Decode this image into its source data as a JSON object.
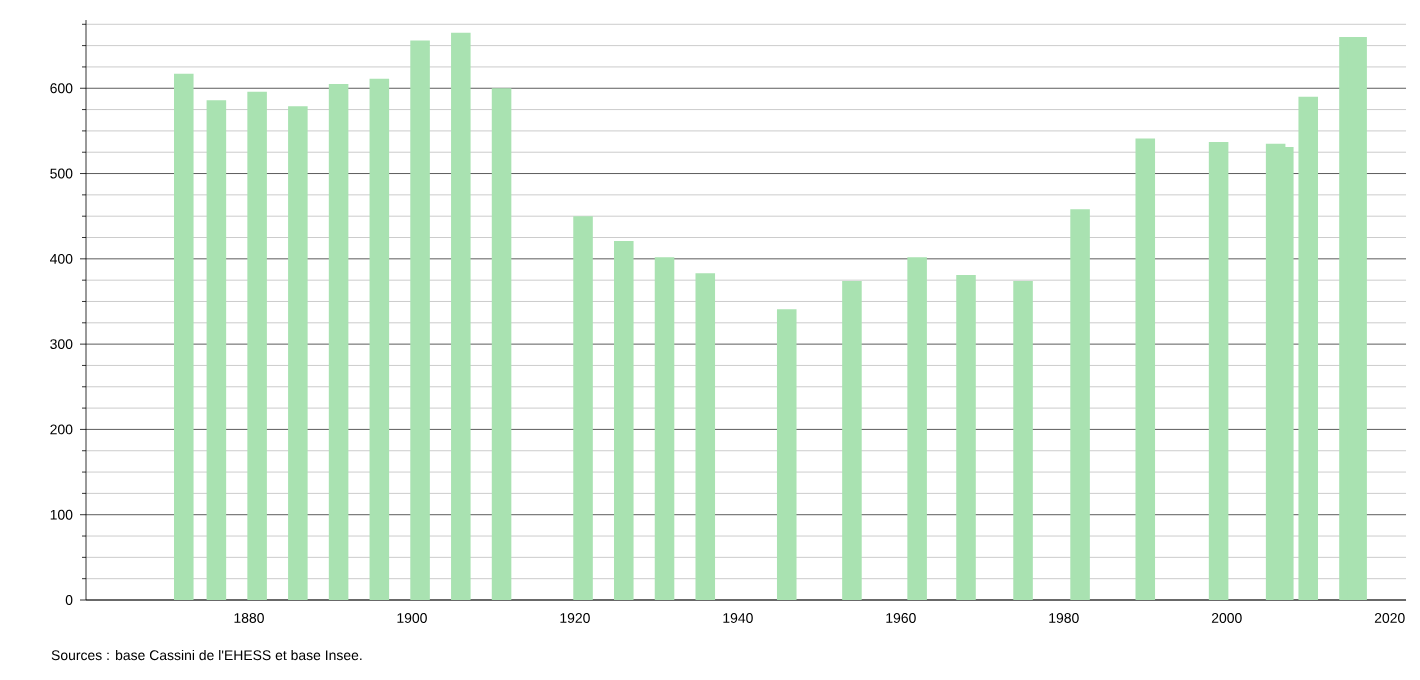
{
  "chart_data": {
    "type": "bar",
    "x": [
      1872,
      1876,
      1881,
      1886,
      1891,
      1896,
      1901,
      1906,
      1911,
      1921,
      1926,
      1931,
      1936,
      1946,
      1954,
      1962,
      1968,
      1975,
      1982,
      1990,
      1999,
      2006,
      2007,
      2010,
      2015,
      2016
    ],
    "values": [
      617,
      586,
      596,
      579,
      605,
      611,
      656,
      665,
      600,
      450,
      421,
      402,
      383,
      341,
      374,
      402,
      381,
      374,
      458,
      541,
      537,
      535,
      531,
      590,
      660,
      660
    ],
    "color": "#a9e2b1",
    "xlim": [
      1860,
      2022
    ],
    "xticks": [
      1880,
      1900,
      1920,
      1940,
      1960,
      1980,
      2000,
      2020
    ],
    "ylim": [
      0,
      680
    ],
    "yticks": [
      0,
      {
        "value": 25,
        "label": null
      },
      {
        "value": 50,
        "label": null
      },
      {
        "value": 75,
        "label": null
      },
      100,
      {
        "value": 125,
        "label": null
      },
      {
        "value": 150,
        "label": null
      },
      {
        "value": 175,
        "label": null
      },
      200,
      {
        "value": 225,
        "label": null
      },
      {
        "value": 250,
        "label": null
      },
      {
        "value": 275,
        "label": null
      },
      300,
      {
        "value": 325,
        "label": null
      },
      {
        "value": 350,
        "label": null
      },
      {
        "value": 375,
        "label": null
      },
      400,
      {
        "value": 425,
        "label": null
      },
      {
        "value": 450,
        "label": null
      },
      {
        "value": 475,
        "label": null
      },
      500,
      {
        "value": 525,
        "label": null
      },
      {
        "value": 550,
        "label": null
      },
      {
        "value": 575,
        "label": null
      },
      600,
      {
        "value": 625,
        "label": null
      },
      {
        "value": 650,
        "label": null
      },
      {
        "value": 675,
        "label": null
      }
    ],
    "grid": "y",
    "annotations": [
      "Sources : base Cassini de l'EHESS et base Insee."
    ]
  }
}
